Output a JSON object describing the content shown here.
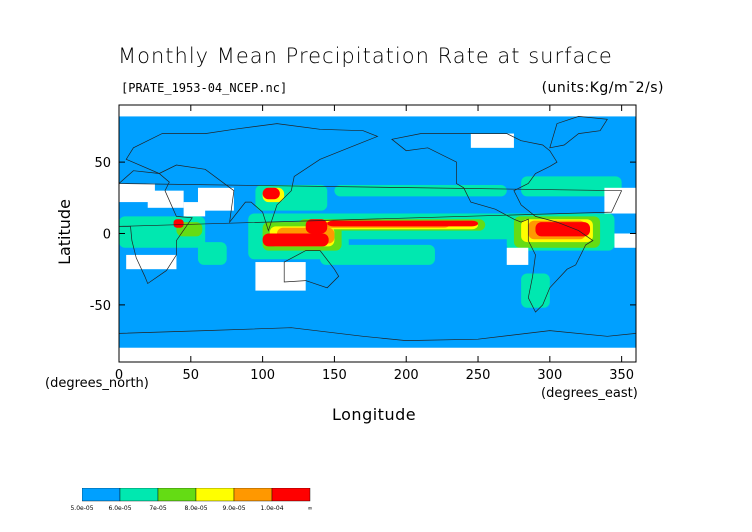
{
  "chart_data": {
    "type": "heatmap",
    "title": "Monthly Mean Precipitation Rate at surface",
    "file_label": "[PRATE_1953-04_NCEP.nc]",
    "units_label": "(units:Kg/m¯2/s)",
    "xlabel": "Longitude",
    "ylabel": "Latitude",
    "x_unit_note": "(degrees_east)",
    "y_unit_note": "(degrees_north)",
    "xlim": [
      0,
      360
    ],
    "ylim": [
      -90,
      90
    ],
    "x_ticks": [
      "0",
      "50",
      "100",
      "150",
      "200",
      "250",
      "300",
      "350"
    ],
    "y_ticks": [
      "50",
      "0",
      "-50"
    ],
    "legend": {
      "labels": [
        "5.0e-05",
        "6.0e-05",
        "7e-05",
        "8.0e-05",
        "9.0e-05",
        "1.0e-04",
        "∞"
      ],
      "colors": [
        "#00a0ff",
        "#00e8b0",
        "#64dc14",
        "#ffff00",
        "#ff9800",
        "#ff0000"
      ]
    },
    "colors": {
      "background": "#00a0ff",
      "mint": "#00e8b0",
      "green": "#64dc14",
      "yellow": "#ffff00",
      "orange": "#ff9800",
      "red": "#ff0000",
      "missing": "#ffffff",
      "coastline": "#222222"
    },
    "regions": [
      {
        "level": 1,
        "lon": [
          95,
          290
        ],
        "lat": [
          -4,
          14
        ]
      },
      {
        "level": 1,
        "lon": [
          90,
          160
        ],
        "lat": [
          -18,
          14
        ]
      },
      {
        "level": 1,
        "lon": [
          270,
          345
        ],
        "lat": [
          -12,
          14
        ]
      },
      {
        "level": 1,
        "lon": [
          0,
          60
        ],
        "lat": [
          -10,
          12
        ]
      },
      {
        "level": 1,
        "lon": [
          55,
          75
        ],
        "lat": [
          -22,
          -6
        ]
      },
      {
        "level": 1,
        "lon": [
          140,
          220
        ],
        "lat": [
          -22,
          -8
        ]
      },
      {
        "level": 1,
        "lon": [
          150,
          270
        ],
        "lat": [
          26,
          34
        ]
      },
      {
        "level": 1,
        "lon": [
          280,
          350
        ],
        "lat": [
          26,
          40
        ]
      },
      {
        "level": 1,
        "lon": [
          95,
          145
        ],
        "lat": [
          16,
          34
        ]
      },
      {
        "level": 1,
        "lon": [
          280,
          300
        ],
        "lat": [
          -52,
          -28
        ]
      },
      {
        "level": 2,
        "lon": [
          125,
          255
        ],
        "lat": [
          2,
          10
        ]
      },
      {
        "level": 2,
        "lon": [
          100,
          155
        ],
        "lat": [
          -12,
          8
        ]
      },
      {
        "level": 2,
        "lon": [
          275,
          335
        ],
        "lat": [
          -10,
          12
        ]
      },
      {
        "level": 2,
        "lon": [
          40,
          58
        ],
        "lat": [
          -2,
          8
        ]
      },
      {
        "level": 3,
        "lon": [
          135,
          250
        ],
        "lat": [
          3,
          9
        ]
      },
      {
        "level": 3,
        "lon": [
          105,
          150
        ],
        "lat": [
          -9,
          5
        ]
      },
      {
        "level": 3,
        "lon": [
          280,
          330
        ],
        "lat": [
          -6,
          10
        ]
      },
      {
        "level": 3,
        "lon": [
          100,
          115
        ],
        "lat": [
          22,
          32
        ]
      },
      {
        "level": 4,
        "lon": [
          140,
          230
        ],
        "lat": [
          4,
          8
        ]
      },
      {
        "level": 4,
        "lon": [
          110,
          150
        ],
        "lat": [
          -7,
          4
        ]
      },
      {
        "level": 4,
        "lon": [
          285,
          325
        ],
        "lat": [
          -4,
          9
        ]
      },
      {
        "level": 5,
        "lon": [
          145,
          250
        ],
        "lat": [
          5,
          9
        ]
      },
      {
        "level": 5,
        "lon": [
          100,
          146
        ],
        "lat": [
          -9,
          0
        ]
      },
      {
        "level": 5,
        "lon": [
          130,
          145
        ],
        "lat": [
          0,
          10
        ]
      },
      {
        "level": 5,
        "lon": [
          290,
          328
        ],
        "lat": [
          -2,
          8
        ]
      },
      {
        "level": 5,
        "lon": [
          38,
          45
        ],
        "lat": [
          4,
          10
        ]
      },
      {
        "level": 5,
        "lon": [
          100,
          112
        ],
        "lat": [
          24,
          32
        ]
      }
    ],
    "missing_regions": [
      {
        "lon": [
          0,
          25
        ],
        "lat": [
          22,
          35
        ]
      },
      {
        "lon": [
          20,
          45
        ],
        "lat": [
          18,
          30
        ]
      },
      {
        "lon": [
          55,
          80
        ],
        "lat": [
          16,
          32
        ]
      },
      {
        "lon": [
          45,
          60
        ],
        "lat": [
          12,
          22
        ]
      },
      {
        "lon": [
          5,
          40
        ],
        "lat": [
          -25,
          -15
        ]
      },
      {
        "lon": [
          270,
          285
        ],
        "lat": [
          -22,
          -10
        ]
      },
      {
        "lon": [
          338,
          360
        ],
        "lat": [
          14,
          32
        ]
      },
      {
        "lon": [
          0,
          360
        ],
        "lat": [
          -90,
          -80
        ]
      },
      {
        "lon": [
          0,
          360
        ],
        "lat": [
          82,
          90
        ]
      },
      {
        "lon": [
          95,
          130
        ],
        "lat": [
          -40,
          -20
        ]
      },
      {
        "lon": [
          345,
          360
        ],
        "lat": [
          -10,
          0
        ]
      },
      {
        "lon": [
          245,
          275
        ],
        "lat": [
          60,
          70
        ]
      }
    ]
  }
}
